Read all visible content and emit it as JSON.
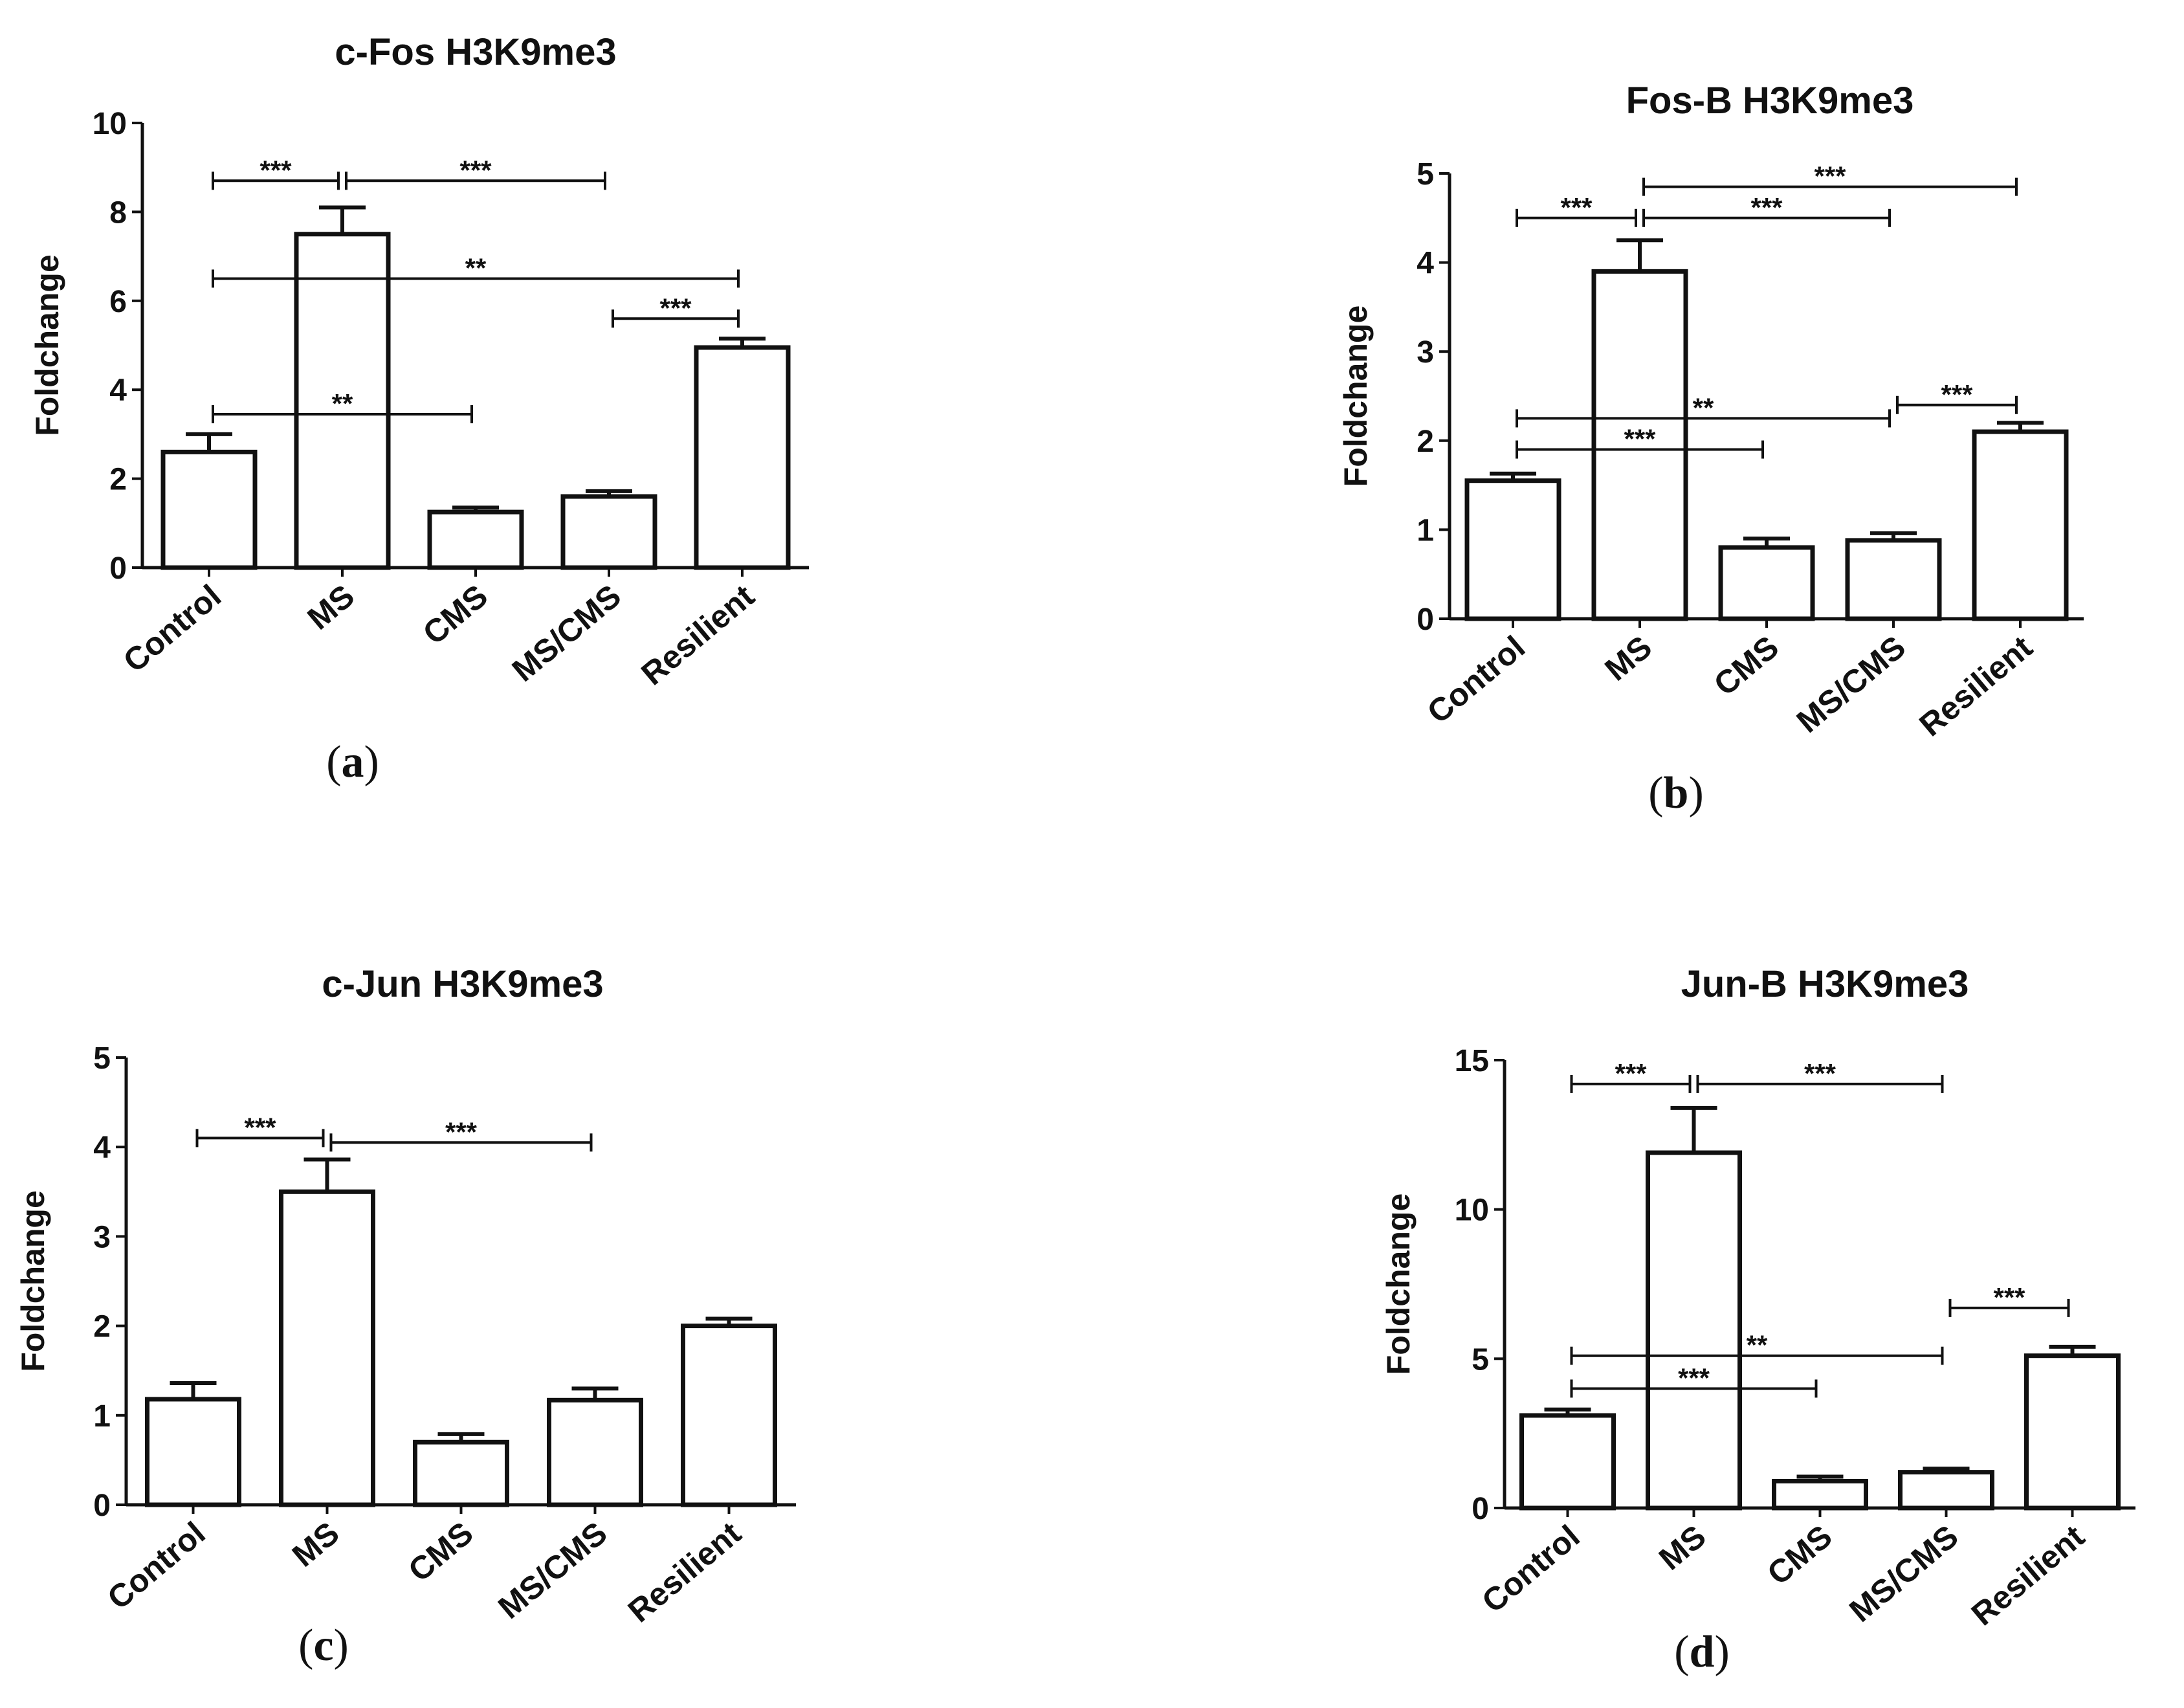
{
  "chart_data": [
    {
      "type": "bar",
      "title": "c-Fos H3K9me3",
      "panel_label": "a",
      "ylabel": "Foldchange",
      "xlabel": "",
      "categories": [
        "Control",
        "MS",
        "CMS",
        "MS/CMS",
        "Resilient"
      ],
      "values": [
        2.6,
        7.5,
        1.25,
        1.6,
        4.95
      ],
      "errors": [
        0.4,
        0.6,
        0.1,
        0.12,
        0.2
      ],
      "ylim": [
        0,
        10
      ],
      "yticks": [
        0,
        2,
        4,
        6,
        8,
        10
      ],
      "significance": [
        {
          "from": 0,
          "to": 1,
          "y": 8.7,
          "label": "***"
        },
        {
          "from": 1,
          "to": 3,
          "y": 8.7,
          "label": "***"
        },
        {
          "from": 0,
          "to": 4,
          "y": 6.5,
          "label": "**"
        },
        {
          "from": 3,
          "to": 4,
          "y": 5.6,
          "label": "***"
        },
        {
          "from": 0,
          "to": 2,
          "y": 3.45,
          "label": "**"
        }
      ]
    },
    {
      "type": "bar",
      "title": "Fos-B H3K9me3",
      "panel_label": "b",
      "ylabel": "Foldchange",
      "xlabel": "",
      "categories": [
        "Control",
        "MS",
        "CMS",
        "MS/CMS",
        "Resilient"
      ],
      "values": [
        1.55,
        3.9,
        0.8,
        0.88,
        2.1
      ],
      "errors": [
        0.08,
        0.35,
        0.1,
        0.08,
        0.1
      ],
      "ylim": [
        0,
        5
      ],
      "yticks": [
        0,
        1,
        2,
        3,
        4,
        5
      ],
      "significance": [
        {
          "from": 1,
          "to": 4,
          "y": 4.85,
          "label": "***"
        },
        {
          "from": 0,
          "to": 1,
          "y": 4.5,
          "label": "***"
        },
        {
          "from": 1,
          "to": 3,
          "y": 4.5,
          "label": "***"
        },
        {
          "from": 3,
          "to": 4,
          "y": 2.4,
          "label": "***"
        },
        {
          "from": 0,
          "to": 3,
          "y": 2.25,
          "label": "**"
        },
        {
          "from": 0,
          "to": 2,
          "y": 1.9,
          "label": "***"
        }
      ]
    },
    {
      "type": "bar",
      "title": "c-Jun H3K9me3",
      "panel_label": "c",
      "ylabel": "Foldchange",
      "xlabel": "",
      "categories": [
        "Control",
        "MS",
        "CMS",
        "MS/CMS",
        "Resilient"
      ],
      "values": [
        1.18,
        3.5,
        0.7,
        1.17,
        2.0
      ],
      "errors": [
        0.18,
        0.36,
        0.09,
        0.13,
        0.08
      ],
      "ylim": [
        0,
        5
      ],
      "yticks": [
        0,
        1,
        2,
        3,
        4,
        5
      ],
      "significance": [
        {
          "from": 0,
          "to": 1,
          "y": 4.1,
          "label": "***"
        },
        {
          "from": 1,
          "to": 3,
          "y": 4.05,
          "label": "***"
        }
      ]
    },
    {
      "type": "bar",
      "title": "Jun-B H3K9me3",
      "panel_label": "d",
      "ylabel": "Foldchange",
      "xlabel": "",
      "categories": [
        "Control",
        "MS",
        "CMS",
        "MS/CMS",
        "Resilient"
      ],
      "values": [
        3.1,
        11.9,
        0.9,
        1.2,
        5.1
      ],
      "errors": [
        0.2,
        1.5,
        0.15,
        0.12,
        0.3
      ],
      "ylim": [
        0,
        15
      ],
      "yticks": [
        0,
        5,
        10,
        15
      ],
      "significance": [
        {
          "from": 0,
          "to": 1,
          "y": 14.2,
          "label": "***"
        },
        {
          "from": 1,
          "to": 3,
          "y": 14.2,
          "label": "***"
        },
        {
          "from": 3,
          "to": 4,
          "y": 6.7,
          "label": "***"
        },
        {
          "from": 0,
          "to": 3,
          "y": 5.1,
          "label": "**"
        },
        {
          "from": 0,
          "to": 2,
          "y": 4.0,
          "label": "***"
        }
      ]
    }
  ]
}
